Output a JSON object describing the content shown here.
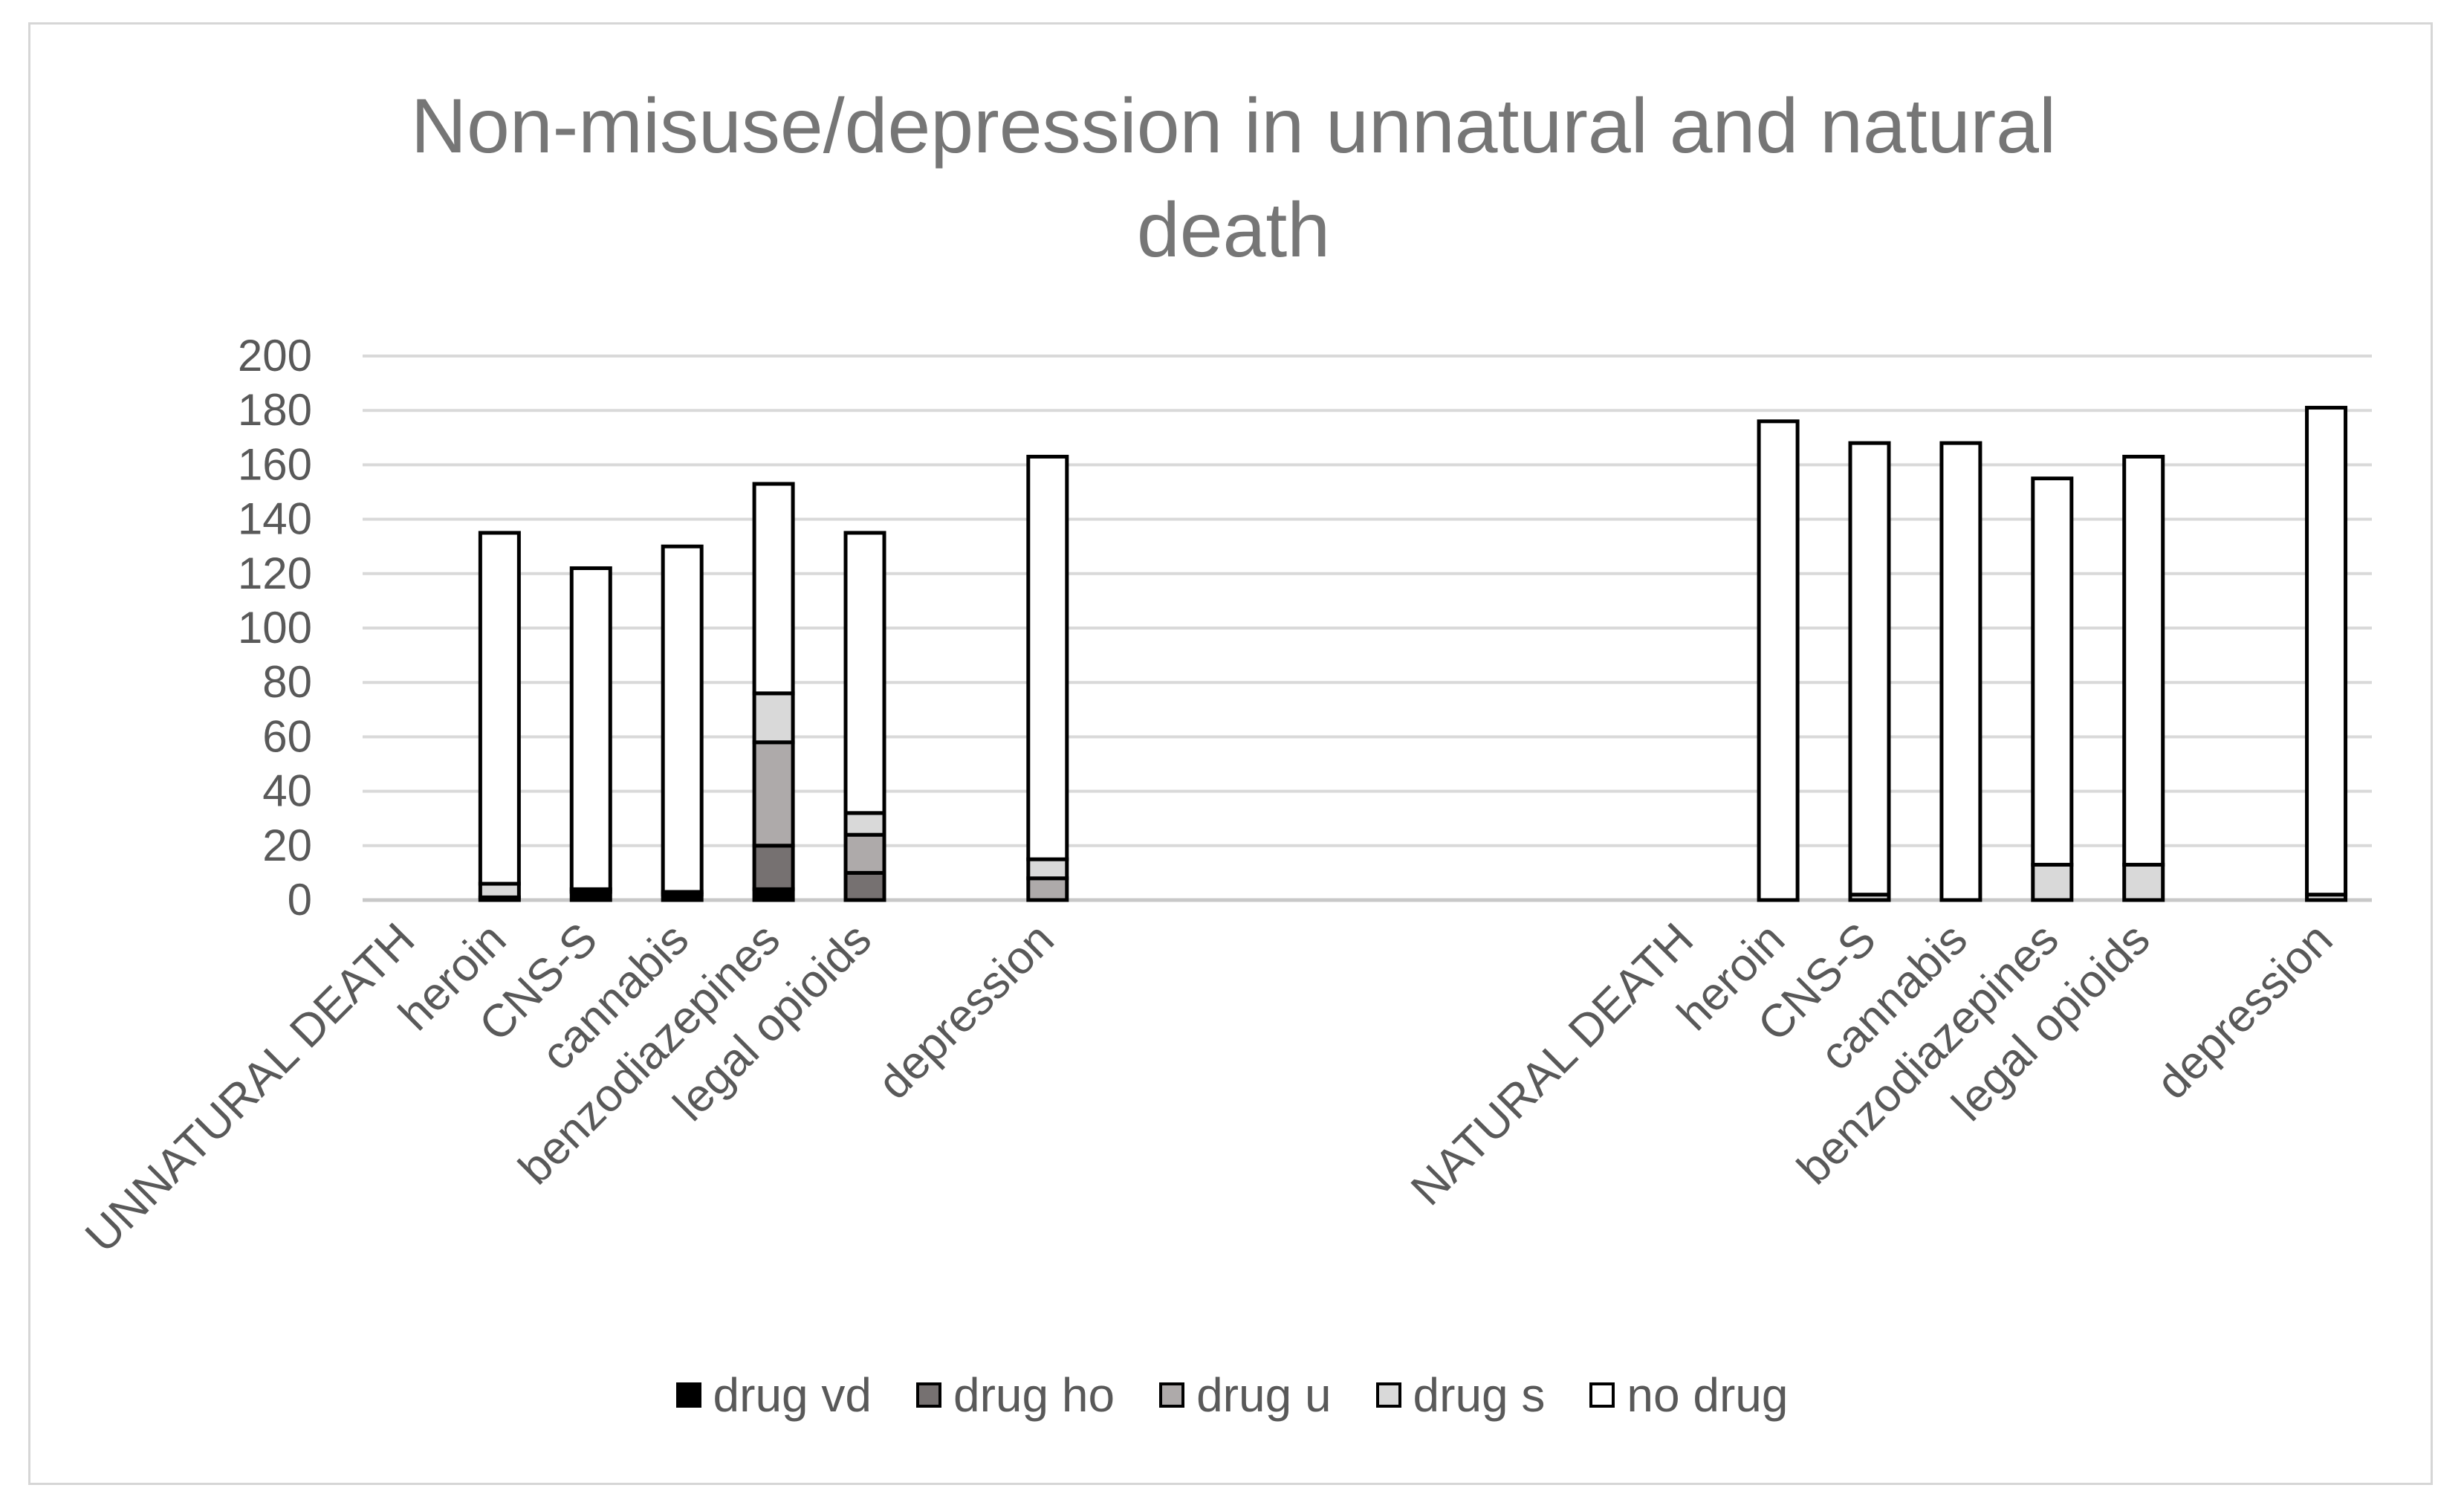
{
  "chart_data": {
    "type": "bar",
    "stacked": true,
    "title": "Non-misuse/depression in unnatural and natural death",
    "title_lines": [
      "Non-misuse/depression in unnatural and natural",
      "death"
    ],
    "xlabel": "",
    "ylabel": "",
    "ylim": [
      0,
      200
    ],
    "yticks": [
      0,
      20,
      40,
      60,
      80,
      100,
      120,
      140,
      160,
      180,
      200
    ],
    "grid": true,
    "legend_position": "bottom",
    "categories": [
      "UNNATURAL DEATH",
      "heroin",
      "CNS-S",
      "cannabis",
      "benzodiazepines",
      "legal opioids",
      "",
      "depression",
      "",
      "",
      "",
      "",
      "",
      "",
      "NATURAL DEATH",
      "heroin",
      "CNS-S",
      "cannabis",
      "benzodiazepines",
      "legal opioids",
      "",
      "depression"
    ],
    "series": [
      {
        "name": "drug vd",
        "color": "#000000",
        "values": [
          0,
          1,
          3,
          2,
          4,
          0,
          0,
          0,
          0,
          0,
          0,
          0,
          0,
          0,
          0,
          0,
          0,
          0,
          0,
          0,
          0,
          0
        ]
      },
      {
        "name": "drug ho",
        "color": "#767171",
        "values": [
          0,
          0,
          0,
          0,
          16,
          10,
          0,
          0,
          0,
          0,
          0,
          0,
          0,
          0,
          0,
          0,
          0,
          0,
          0,
          0,
          0,
          0
        ]
      },
      {
        "name": "drug u",
        "color": "#aeaaaa",
        "values": [
          0,
          0,
          0,
          0,
          38,
          14,
          0,
          8,
          0,
          0,
          0,
          0,
          0,
          0,
          0,
          0,
          0,
          0,
          0,
          0,
          0,
          0
        ]
      },
      {
        "name": "drug s",
        "color": "#d9d9d9",
        "values": [
          0,
          5,
          1,
          1,
          18,
          8,
          0,
          7,
          0,
          0,
          0,
          0,
          0,
          0,
          0,
          0,
          2,
          0,
          13,
          13,
          0,
          2
        ]
      },
      {
        "name": "no drug",
        "color": "#ffffff",
        "values": [
          0,
          129,
          118,
          127,
          77,
          103,
          0,
          148,
          0,
          0,
          0,
          0,
          0,
          0,
          0,
          176,
          166,
          168,
          142,
          150,
          0,
          179
        ]
      }
    ]
  }
}
